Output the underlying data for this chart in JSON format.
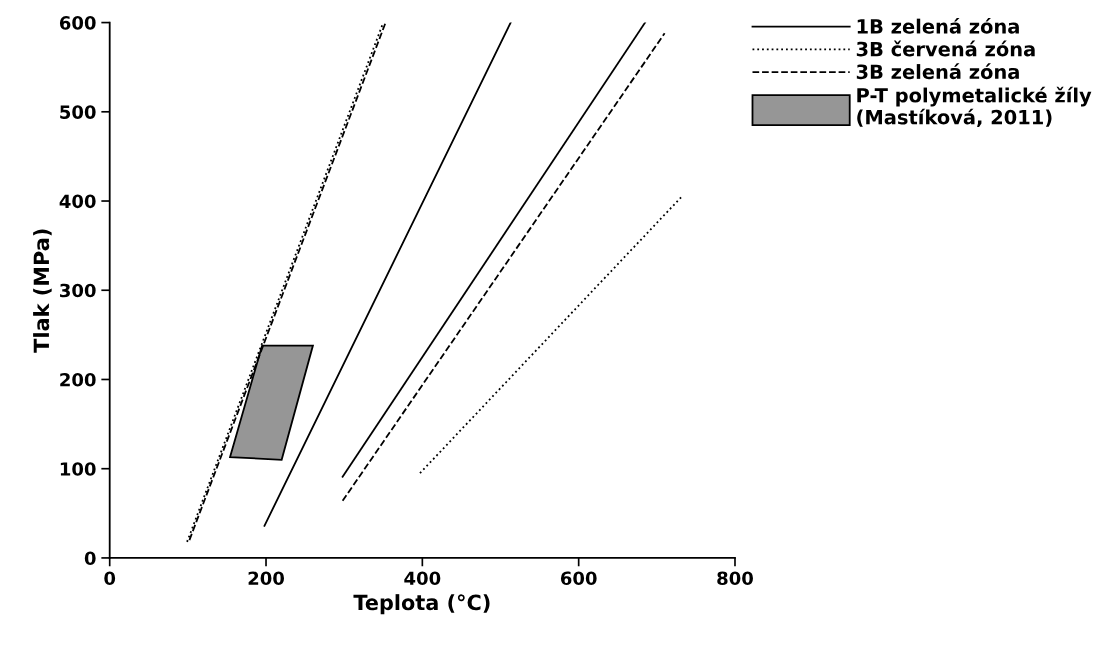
{
  "chart_data": {
    "type": "line",
    "xlabel": "Teplota (°C)",
    "ylabel": "Tlak (MPa)",
    "xlim": [
      0,
      800
    ],
    "xticks": [
      0,
      200,
      400,
      600,
      800
    ],
    "ylim": [
      0,
      600
    ],
    "yticks": [
      0,
      100,
      200,
      300,
      400,
      500,
      600
    ],
    "grid": false,
    "legend": "top right",
    "marker": "none",
    "series": [
      {
        "name": "1B zelená zóna",
        "color": "#000000",
        "line_style": "solid",
        "x": [
          198,
          513
        ],
        "values": [
          36,
          600
        ]
      },
      {
        "name": "3B červená zóna",
        "color": "#000000",
        "line_style": "dotted",
        "x": [
          99,
          350
        ],
        "values": [
          18,
          600
        ]
      },
      {
        "name": "3B zelená zóna",
        "color": "#000000",
        "line_style": "dashed",
        "x": [
          102,
          353
        ],
        "values": [
          20,
          600
        ]
      },
      {
        "name": "P-T polymetalické žíly (Mastíková, 2011)",
        "type": "area",
        "color": "#969696",
        "x": [
          154,
          195,
          260,
          220
        ],
        "values": [
          113,
          238,
          238,
          110
        ]
      },
      {
        "color": "#000000",
        "line_style": "solid",
        "x": [
          298,
          685
        ],
        "values": [
          91,
          600
        ]
      },
      {
        "color": "#000000",
        "line_style": "dotted",
        "x": [
          397,
          733
        ],
        "values": [
          95,
          406
        ]
      },
      {
        "color": "#000000",
        "line_style": "dashed",
        "x": [
          298,
          710
        ],
        "values": [
          64,
          588
        ]
      }
    ]
  }
}
